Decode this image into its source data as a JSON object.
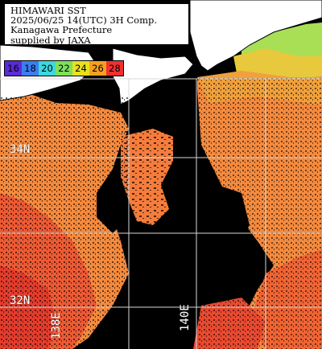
{
  "title_lines": [
    "HIMAWARI SST",
    "2025/06/25 14(UTC) 3H Comp.",
    "Kanagawa Prefecture",
    "supplied by JAXA"
  ],
  "legend": [
    {
      "label": "16",
      "color": "#5a2bd6"
    },
    {
      "label": "18",
      "color": "#3c7df2"
    },
    {
      "label": "20",
      "color": "#3cd8dc"
    },
    {
      "label": "22",
      "color": "#7ee05a"
    },
    {
      "label": "24",
      "color": "#e8e020"
    },
    {
      "label": "26",
      "color": "#f5a020"
    },
    {
      "label": "28",
      "color": "#f03030"
    }
  ],
  "grid_labels": {
    "lat_34": "34N",
    "lat_32": "32N",
    "lon_138": "138E",
    "lon_140": "140E"
  },
  "colors": {
    "land": "#ffffff",
    "no_data": "#000000",
    "warm": "#f26a3c",
    "orange": "#f48a3e",
    "hot": "#e83e2c",
    "green": "#a8df54",
    "yellow": "#e8c83c",
    "grid": "#d8d8d8"
  }
}
